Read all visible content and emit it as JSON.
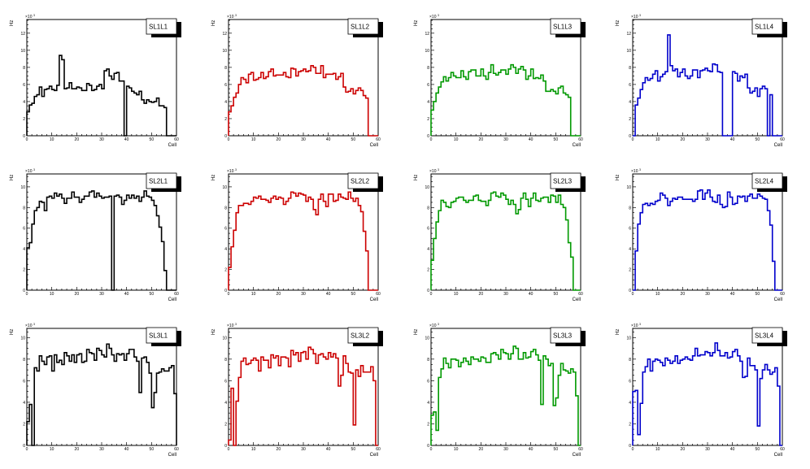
{
  "chart_data": [
    {
      "type": "bar",
      "title": "SL1L1",
      "xlabel": "Cell",
      "ylabel": "Hz",
      "y_multiplier": "×10",
      "y_multiplier_exp": "3",
      "xlim": [
        0,
        60
      ],
      "ylim": [
        0,
        13.6
      ],
      "color": "#000000",
      "xticks": [
        "0",
        "10",
        "20",
        "30",
        "40",
        "50",
        "60"
      ],
      "yticks": [
        "0",
        "2",
        "4",
        "6",
        "8",
        "10",
        "12"
      ],
      "values": [
        2.8,
        3.6,
        3.8,
        4.6,
        4.8,
        5.7,
        4.6,
        5.4,
        5.5,
        5.8,
        5.4,
        5.3,
        5.9,
        9.4,
        8.9,
        5.5,
        5.6,
        6.2,
        5.5,
        5.5,
        5.7,
        5.6,
        5.3,
        5.3,
        6.1,
        5.9,
        5.3,
        5.4,
        5.8,
        6.0,
        5.5,
        7.6,
        7.8,
        7.0,
        6.6,
        7.3,
        7.4,
        6.4,
        6.4,
        0,
        5.8,
        5.6,
        5.2,
        5.0,
        4.8,
        5.2,
        4.2,
        3.8,
        4.2,
        4.0,
        3.9,
        4.0,
        4.4,
        3.5,
        3.5,
        3.3,
        0,
        0,
        0,
        0
      ]
    },
    {
      "type": "bar",
      "title": "SL1L2",
      "xlabel": "Cell",
      "ylabel": "Hz",
      "y_multiplier": "×10",
      "y_multiplier_exp": "3",
      "xlim": [
        0,
        60
      ],
      "ylim": [
        0,
        13.6
      ],
      "color": "#cc0000",
      "xticks": [
        "0",
        "10",
        "20",
        "30",
        "40",
        "50",
        "60"
      ],
      "yticks": [
        "0",
        "2",
        "4",
        "6",
        "8",
        "10",
        "12"
      ],
      "values": [
        2.8,
        3.5,
        4.5,
        5.0,
        6.0,
        6.8,
        6.6,
        6.2,
        7.2,
        7.4,
        6.5,
        6.6,
        6.8,
        7.4,
        6.7,
        6.9,
        7.5,
        7.8,
        7.0,
        7.1,
        7.1,
        7.1,
        7.4,
        6.9,
        6.8,
        7.9,
        7.8,
        7.0,
        7.5,
        7.6,
        7.8,
        7.5,
        7.6,
        8.2,
        8.0,
        7.3,
        7.3,
        8.2,
        6.8,
        7.2,
        7.2,
        7.2,
        7.3,
        6.6,
        6.9,
        7.3,
        5.7,
        5.1,
        5.2,
        5.5,
        4.9,
        5.3,
        5.6,
        5.3,
        4.7,
        4.4,
        0,
        0,
        0,
        0
      ]
    },
    {
      "type": "bar",
      "title": "SL1L3",
      "xlabel": "Cell",
      "ylabel": "Hz",
      "y_multiplier": "×10",
      "y_multiplier_exp": "3",
      "xlim": [
        0,
        60
      ],
      "ylim": [
        0,
        13.6
      ],
      "color": "#009900",
      "xticks": [
        "0",
        "10",
        "20",
        "30",
        "40",
        "50",
        "60"
      ],
      "yticks": [
        "0",
        "2",
        "4",
        "6",
        "8",
        "10",
        "12"
      ],
      "values": [
        3.0,
        4.0,
        5.0,
        5.7,
        6.3,
        6.9,
        6.4,
        6.8,
        7.4,
        7.0,
        6.8,
        6.8,
        7.6,
        6.9,
        6.6,
        7.5,
        7.7,
        7.7,
        7.0,
        7.0,
        7.8,
        7.0,
        6.6,
        7.4,
        8.3,
        7.3,
        7.1,
        7.4,
        7.7,
        7.7,
        7.2,
        7.8,
        8.3,
        8.0,
        7.3,
        7.8,
        8.1,
        7.7,
        6.6,
        7.0,
        7.8,
        6.7,
        6.8,
        6.7,
        7.1,
        6.4,
        5.2,
        5.2,
        5.4,
        5.2,
        4.9,
        5.6,
        5.8,
        5.0,
        4.8,
        4.5,
        0,
        0,
        0,
        0
      ]
    },
    {
      "type": "bar",
      "title": "SL1L4",
      "xlabel": "Cell",
      "ylabel": "Hz",
      "y_multiplier": "×10",
      "y_multiplier_exp": "3",
      "xlim": [
        0,
        60
      ],
      "ylim": [
        0,
        13.6
      ],
      "color": "#0000cc",
      "xticks": [
        "0",
        "10",
        "20",
        "30",
        "40",
        "50",
        "60"
      ],
      "yticks": [
        "0",
        "2",
        "4",
        "6",
        "8",
        "10",
        "12"
      ],
      "values": [
        0,
        3.6,
        4.4,
        5.4,
        6.2,
        6.8,
        6.5,
        6.7,
        7.2,
        7.6,
        6.4,
        6.9,
        7.2,
        7.5,
        11.8,
        8.2,
        7.6,
        7.8,
        6.9,
        7.4,
        7.8,
        7.0,
        6.7,
        7.0,
        7.7,
        7.7,
        6.8,
        7.6,
        7.7,
        7.9,
        7.6,
        7.5,
        8.4,
        8.3,
        7.5,
        7.4,
        0,
        0,
        0,
        0,
        7.5,
        7.3,
        6.4,
        7.0,
        6.8,
        7.2,
        5.6,
        5.0,
        5.2,
        5.6,
        4.6,
        5.5,
        5.8,
        5.5,
        0,
        4.8,
        0,
        0,
        0,
        0
      ]
    },
    {
      "type": "bar",
      "title": "SL2L1",
      "xlabel": "Cell",
      "ylabel": "Hz",
      "y_multiplier": "×10",
      "y_multiplier_exp": "3",
      "xlim": [
        0,
        60
      ],
      "ylim": [
        0,
        11.25
      ],
      "color": "#000000",
      "xticks": [
        "0",
        "10",
        "20",
        "30",
        "40",
        "50",
        "60"
      ],
      "yticks": [
        "0",
        "2",
        "4",
        "6",
        "8",
        "10"
      ],
      "values": [
        4.1,
        4.6,
        6.4,
        7.7,
        8.0,
        8.6,
        8.5,
        7.7,
        9.0,
        9.1,
        8.9,
        9.4,
        9.1,
        9.3,
        8.9,
        8.4,
        8.9,
        8.9,
        9.5,
        9.0,
        9.0,
        8.5,
        8.8,
        9.1,
        9.1,
        9.5,
        9.6,
        9.0,
        9.4,
        9.1,
        8.9,
        9.0,
        9.0,
        9.1,
        0,
        9.1,
        9.2,
        9.0,
        8.3,
        8.7,
        9.2,
        8.9,
        9.2,
        8.9,
        9.1,
        8.6,
        9.0,
        9.6,
        9.1,
        9.0,
        8.7,
        8.2,
        7.2,
        6.1,
        4.7,
        1.9,
        0,
        0,
        0,
        0
      ]
    },
    {
      "type": "bar",
      "title": "SL2L2",
      "xlabel": "Cell",
      "ylabel": "Hz",
      "y_multiplier": "×10",
      "y_multiplier_exp": "3",
      "xlim": [
        0,
        60
      ],
      "ylim": [
        0,
        11.25
      ],
      "color": "#cc0000",
      "xticks": [
        "0",
        "10",
        "20",
        "30",
        "40",
        "50",
        "60"
      ],
      "yticks": [
        "0",
        "2",
        "4",
        "6",
        "8",
        "10"
      ],
      "values": [
        2.2,
        4.2,
        5.8,
        7.5,
        8.2,
        8.2,
        8.4,
        8.4,
        8.3,
        8.6,
        9.0,
        8.9,
        9.1,
        8.8,
        8.8,
        8.7,
        8.5,
        8.9,
        9.1,
        8.8,
        9.0,
        8.9,
        8.3,
        8.6,
        8.9,
        9.5,
        9.4,
        9.1,
        9.4,
        9.3,
        9.2,
        8.6,
        9.0,
        8.8,
        7.8,
        7.3,
        8.8,
        9.3,
        8.6,
        8.1,
        9.3,
        9.3,
        8.6,
        8.7,
        9.3,
        9.0,
        8.9,
        8.8,
        9.5,
        8.9,
        8.6,
        8.9,
        8.2,
        7.6,
        5.7,
        3.8,
        0,
        0,
        0,
        0
      ]
    },
    {
      "type": "bar",
      "title": "SL2L3",
      "xlabel": "Cell",
      "ylabel": "Hz",
      "y_multiplier": "×10",
      "y_multiplier_exp": "3",
      "xlim": [
        0,
        60
      ],
      "ylim": [
        0,
        11.25
      ],
      "color": "#009900",
      "xticks": [
        "0",
        "10",
        "20",
        "30",
        "40",
        "50",
        "60"
      ],
      "yticks": [
        "0",
        "2",
        "4",
        "6",
        "8",
        "10"
      ],
      "values": [
        2.9,
        5.0,
        6.6,
        7.7,
        8.7,
        8.5,
        8.1,
        8.0,
        8.5,
        8.6,
        8.9,
        9.0,
        9.0,
        8.7,
        8.5,
        8.7,
        8.7,
        9.1,
        9.2,
        8.7,
        8.6,
        8.6,
        8.2,
        8.7,
        9.4,
        9.5,
        9.1,
        9.0,
        9.4,
        9.2,
        8.8,
        8.3,
        8.7,
        8.3,
        7.4,
        7.8,
        8.9,
        9.4,
        8.8,
        8.1,
        8.9,
        9.4,
        8.7,
        8.6,
        8.9,
        9.0,
        9.0,
        8.5,
        9.2,
        9.1,
        8.5,
        9.2,
        8.3,
        8.0,
        6.8,
        4.6,
        3.2,
        0,
        0,
        0
      ]
    },
    {
      "type": "bar",
      "title": "SL2L4",
      "xlabel": "Cell",
      "ylabel": "Hz",
      "y_multiplier": "×10",
      "y_multiplier_exp": "3",
      "xlim": [
        0,
        60
      ],
      "ylim": [
        0,
        11.25
      ],
      "color": "#0000cc",
      "xticks": [
        "0",
        "10",
        "20",
        "30",
        "40",
        "50",
        "60"
      ],
      "yticks": [
        "0",
        "2",
        "4",
        "6",
        "8",
        "10"
      ],
      "values": [
        0,
        3.8,
        6.4,
        7.5,
        8.3,
        8.4,
        8.2,
        8.4,
        8.3,
        8.6,
        8.7,
        9.4,
        9.2,
        8.9,
        8.2,
        8.6,
        8.9,
        8.8,
        9.0,
        9.0,
        8.8,
        8.8,
        8.8,
        8.8,
        8.6,
        8.8,
        9.6,
        9.7,
        8.8,
        9.4,
        9.7,
        9.0,
        8.6,
        8.5,
        9.2,
        8.3,
        8.0,
        8.1,
        9.5,
        9.0,
        8.3,
        8.4,
        9.1,
        9.0,
        9.1,
        8.6,
        9.1,
        9.3,
        8.9,
        8.9,
        9.3,
        9.1,
        8.9,
        8.8,
        7.7,
        6.3,
        2.8,
        0,
        0,
        0
      ]
    },
    {
      "type": "bar",
      "title": "SL3L1",
      "xlabel": "Cell",
      "ylabel": "Hz",
      "y_multiplier": "×10",
      "y_multiplier_exp": "3",
      "xlim": [
        0,
        60
      ],
      "ylim": [
        0,
        10.85
      ],
      "color": "#000000",
      "xticks": [
        "0",
        "10",
        "20",
        "30",
        "40",
        "50",
        "60"
      ],
      "yticks": [
        "0",
        "2",
        "4",
        "6",
        "8",
        "10"
      ],
      "values": [
        2.2,
        3.8,
        0,
        7.2,
        6.9,
        8.3,
        7.8,
        7.5,
        8.2,
        8.3,
        6.9,
        8.4,
        7.7,
        7.9,
        7.5,
        8.6,
        8.3,
        7.8,
        8.4,
        7.7,
        8.4,
        8.5,
        7.7,
        7.8,
        8.9,
        8.6,
        8.5,
        7.9,
        9.0,
        8.8,
        8.4,
        8.2,
        9.4,
        9.0,
        8.4,
        7.8,
        8.5,
        8.4,
        8.5,
        7.9,
        8.5,
        8.9,
        8.9,
        8.2,
        7.8,
        4.9,
        8.1,
        8.2,
        7.7,
        6.7,
        3.5,
        4.9,
        6.7,
        6.8,
        7.1,
        6.9,
        6.9,
        7.2,
        7.4,
        4.8
      ]
    },
    {
      "type": "bar",
      "title": "SL3L2",
      "xlabel": "Cell",
      "ylabel": "Hz",
      "y_multiplier": "×10",
      "y_multiplier_exp": "3",
      "xlim": [
        0,
        60
      ],
      "ylim": [
        0,
        10.85
      ],
      "color": "#cc0000",
      "xticks": [
        "0",
        "10",
        "20",
        "30",
        "40",
        "50",
        "60"
      ],
      "yticks": [
        "0",
        "2",
        "4",
        "6",
        "8",
        "10"
      ],
      "values": [
        0.5,
        5.3,
        0,
        4.1,
        6.3,
        7.8,
        8.1,
        7.5,
        7.6,
        7.9,
        8.1,
        7.9,
        6.9,
        8.2,
        7.9,
        7.9,
        7.2,
        8.4,
        8.1,
        8.3,
        7.4,
        8.2,
        8.2,
        8.1,
        7.3,
        8.8,
        8.4,
        8.6,
        7.8,
        8.6,
        8.7,
        8.0,
        9.1,
        8.9,
        8.5,
        7.6,
        8.4,
        8.5,
        8.2,
        8.0,
        8.6,
        8.2,
        8.5,
        8.1,
        5.5,
        6.5,
        8.3,
        7.6,
        6.8,
        6.7,
        1.9,
        7.0,
        6.4,
        7.4,
        6.8,
        6.8,
        6.8,
        7.3,
        6.0,
        0
      ]
    },
    {
      "type": "bar",
      "title": "SL3L3",
      "xlabel": "Cell",
      "ylabel": "Hz",
      "y_multiplier": "×10",
      "y_multiplier_exp": "3",
      "xlim": [
        0,
        60
      ],
      "ylim": [
        0,
        10.85
      ],
      "color": "#009900",
      "xticks": [
        "0",
        "10",
        "20",
        "30",
        "40",
        "50",
        "60"
      ],
      "yticks": [
        "0",
        "2",
        "4",
        "6",
        "8",
        "10"
      ],
      "values": [
        2.8,
        3.1,
        1.4,
        6.3,
        7.1,
        8.1,
        7.6,
        7.2,
        8.0,
        8.0,
        7.9,
        7.3,
        7.7,
        8.1,
        7.8,
        7.5,
        8.2,
        8.0,
        8.0,
        7.8,
        8.2,
        8.1,
        7.7,
        7.7,
        8.5,
        8.6,
        8.4,
        8.0,
        8.9,
        8.6,
        8.5,
        8.0,
        8.5,
        9.2,
        9.0,
        8.0,
        8.0,
        8.6,
        8.1,
        8.2,
        8.7,
        8.9,
        8.4,
        7.9,
        3.8,
        8.3,
        8.0,
        7.4,
        7.6,
        3.7,
        4.4,
        6.5,
        7.6,
        7.0,
        6.9,
        6.7,
        7.1,
        6.8,
        4.6,
        0
      ]
    },
    {
      "type": "bar",
      "title": "SL3L4",
      "xlabel": "Cell",
      "ylabel": "Hz",
      "y_multiplier": "×10",
      "y_multiplier_exp": "3",
      "xlim": [
        0,
        60
      ],
      "ylim": [
        0,
        10.85
      ],
      "color": "#0000cc",
      "xticks": [
        "0",
        "10",
        "20",
        "30",
        "40",
        "50",
        "60"
      ],
      "yticks": [
        "0",
        "2",
        "4",
        "6",
        "8",
        "10"
      ],
      "values": [
        5.0,
        5.1,
        1.0,
        3.9,
        6.8,
        7.3,
        8.0,
        6.9,
        7.8,
        8.0,
        7.9,
        7.7,
        7.4,
        8.1,
        7.9,
        7.6,
        7.8,
        8.3,
        7.6,
        7.9,
        8.0,
        8.2,
        8.0,
        7.9,
        8.3,
        9.0,
        8.3,
        8.4,
        8.4,
        8.7,
        8.6,
        8.3,
        8.6,
        9.5,
        8.8,
        8.3,
        8.3,
        8.6,
        8.1,
        8.2,
        8.7,
        8.9,
        8.3,
        7.8,
        6.3,
        6.4,
        8.1,
        7.4,
        7.4,
        7.0,
        1.8,
        6.2,
        7.0,
        7.5,
        7.0,
        6.6,
        6.8,
        7.2,
        5.5,
        0
      ]
    }
  ]
}
